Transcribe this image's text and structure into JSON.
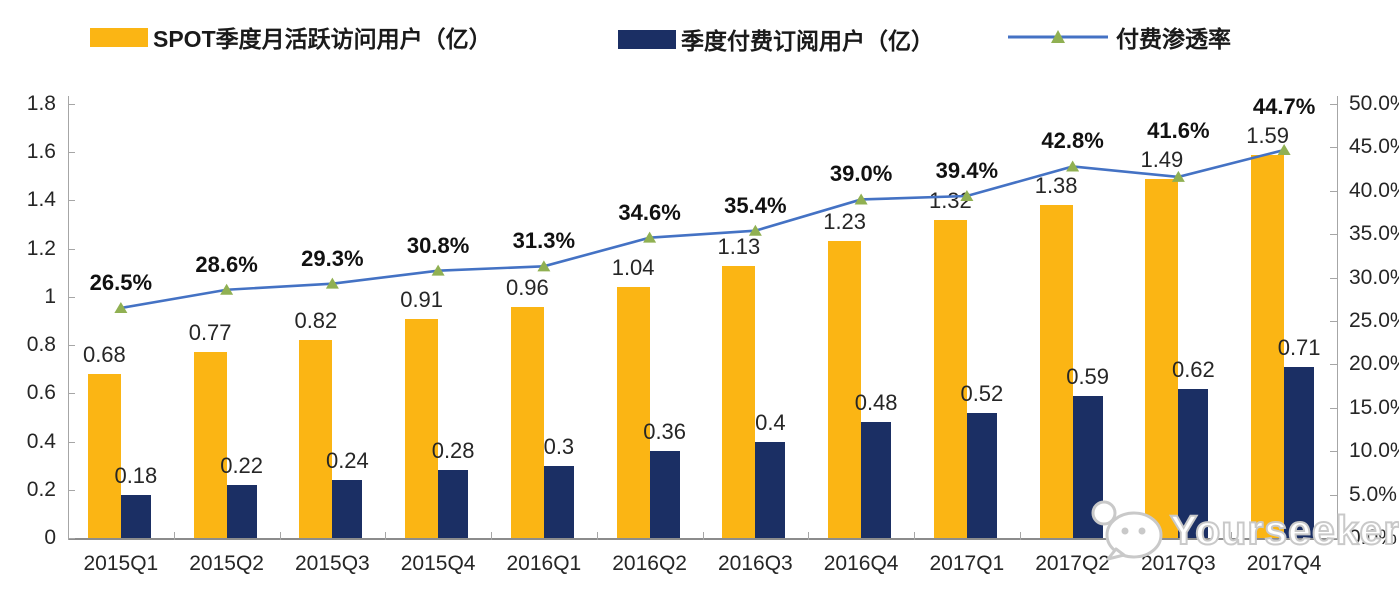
{
  "watermark": {
    "text": "Yourseeker",
    "icon": "wechat-chat-bubbles-icon"
  },
  "chart_data": {
    "type": "bar",
    "subtype": "grouped-bars-with-line-overlay",
    "title": "",
    "legend_position": "top",
    "grid": false,
    "categories": [
      "2015Q1",
      "2015Q2",
      "2015Q3",
      "2015Q4",
      "2016Q1",
      "2016Q2",
      "2016Q3",
      "2016Q4",
      "2017Q1",
      "2017Q2",
      "2017Q3",
      "2017Q4"
    ],
    "series": [
      {
        "name": "SPOT季度月活跃访问用户（亿）",
        "type": "bar",
        "axis": "left",
        "color": "#FBB514",
        "values": [
          0.68,
          0.77,
          0.82,
          0.91,
          0.96,
          1.04,
          1.13,
          1.23,
          1.32,
          1.38,
          1.49,
          1.59
        ],
        "labels": [
          "0.68",
          "0.77",
          "0.82",
          "0.91",
          "0.96",
          "1.04",
          "1.13",
          "1.23",
          "1.32",
          "1.38",
          "1.49",
          "1.59"
        ]
      },
      {
        "name": "季度付费订阅用户（亿）",
        "type": "bar",
        "axis": "left",
        "color": "#1B2F64",
        "values": [
          0.18,
          0.22,
          0.24,
          0.28,
          0.3,
          0.36,
          0.4,
          0.48,
          0.52,
          0.59,
          0.62,
          0.71
        ],
        "labels": [
          "0.18",
          "0.22",
          "0.24",
          "0.28",
          "0.3",
          "0.36",
          "0.4",
          "0.48",
          "0.52",
          "0.59",
          "0.62",
          "0.71"
        ]
      },
      {
        "name": "付费渗透率",
        "type": "line",
        "axis": "right",
        "color": "#4472C4",
        "marker": "triangle",
        "marker_color": "#90B052",
        "values": [
          26.5,
          28.6,
          29.3,
          30.8,
          31.3,
          34.6,
          35.4,
          39.0,
          39.4,
          42.8,
          41.6,
          44.7
        ],
        "labels": [
          "26.5%",
          "28.6%",
          "29.3%",
          "30.8%",
          "31.3%",
          "34.6%",
          "35.4%",
          "39.0%",
          "39.4%",
          "42.8%",
          "41.6%",
          "44.7%"
        ]
      }
    ],
    "left_axis": {
      "min": 0,
      "max": 1.8,
      "step": 0.2,
      "tick_labels": [
        "1.8",
        "1.6",
        "1.4",
        "1.2",
        "1",
        "0.8",
        "0.6",
        "0.4",
        "0.2",
        "0"
      ]
    },
    "right_axis": {
      "min": 0,
      "max": 50,
      "step": 5,
      "tick_labels": [
        "50.0%",
        "45.0%",
        "40.0%",
        "35.0%",
        "30.0%",
        "25.0%",
        "20.0%",
        "15.0%",
        "10.0%",
        "5.0%",
        "0.0%"
      ]
    },
    "axis_color": "#A6A6A6",
    "text_color": "#262626"
  }
}
